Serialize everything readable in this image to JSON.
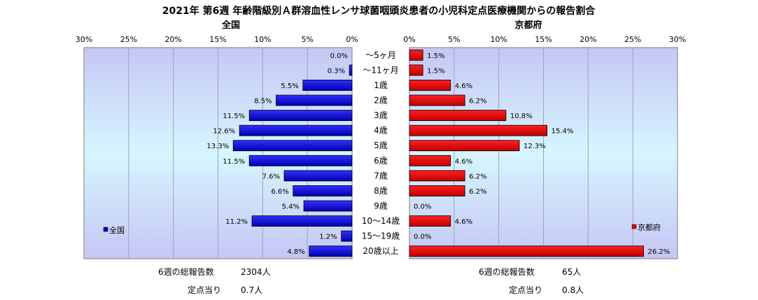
{
  "chart_data": {
    "type": "bar",
    "title": "2021年 第6週 年齢階級別Ａ群溶血性レンサ球菌咽頭炎患者の小児科定点医療機関からの報告割合",
    "categories": [
      "～5ヶ月",
      "～11ヶ月",
      "1歳",
      "2歳",
      "3歳",
      "4歳",
      "5歳",
      "6歳",
      "7歳",
      "8歳",
      "9歳",
      "10～14歳",
      "15～19歳",
      "20歳以上"
    ],
    "xlim": [
      0,
      30
    ],
    "ticks": [
      "30%",
      "25%",
      "20%",
      "15%",
      "10%",
      "5%",
      "0%"
    ],
    "ticks_right": [
      "0%",
      "5%",
      "10%",
      "15%",
      "20%",
      "25%",
      "30%"
    ],
    "unit": "%",
    "grid": true,
    "series": [
      {
        "name": "全国",
        "panel_title": "全国",
        "legend": "全国",
        "legend_position": "bottom-left",
        "color": "#0000d0",
        "values": [
          0.0,
          0.3,
          5.5,
          8.5,
          11.5,
          12.6,
          13.3,
          11.5,
          7.6,
          6.6,
          5.4,
          11.2,
          1.2,
          4.8
        ],
        "labels": [
          "0.0%",
          "0.3%",
          "5.5%",
          "8.5%",
          "11.5%",
          "12.6%",
          "13.3%",
          "11.5%",
          "7.6%",
          "6.6%",
          "5.4%",
          "11.2%",
          "1.2%",
          "4.8%"
        ]
      },
      {
        "name": "京都府",
        "panel_title": "京都府",
        "legend": "京都府",
        "legend_position": "bottom-right",
        "color": "#e00000",
        "values": [
          1.5,
          1.5,
          4.6,
          6.2,
          10.8,
          15.4,
          12.3,
          4.6,
          6.2,
          6.2,
          0.0,
          4.6,
          0.0,
          26.2
        ],
        "labels": [
          "1.5%",
          "1.5%",
          "4.6%",
          "6.2%",
          "10.8%",
          "15.4%",
          "12.3%",
          "4.6%",
          "6.2%",
          "6.2%",
          "0.0%",
          "4.6%",
          "0.0%",
          "26.2%"
        ]
      }
    ]
  },
  "footer": {
    "left": {
      "total_label": "6週の総報告数",
      "total_value": "2304人",
      "per_label": "定点当り",
      "per_value": "0.7人"
    },
    "right": {
      "total_label": "6週の総報告数",
      "total_value": "65人",
      "per_label": "定点当り",
      "per_value": "0.8人"
    }
  }
}
